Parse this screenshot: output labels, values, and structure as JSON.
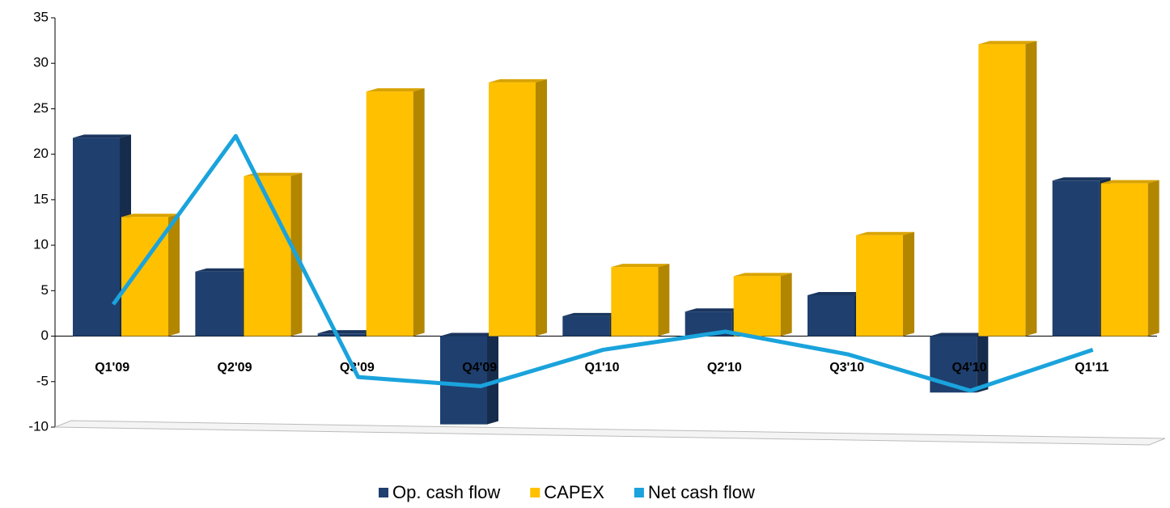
{
  "chart_data": {
    "type": "bar-line",
    "categories": [
      "Q1'09",
      "Q2'09",
      "Q3'09",
      "Q4'09",
      "Q1'10",
      "Q2'10",
      "Q3'10",
      "Q4'10",
      "Q1'11"
    ],
    "series": [
      {
        "name": "Op. cash flow",
        "color": "#1f3f6e",
        "type": "bar",
        "values": [
          21.8,
          7.1,
          0.3,
          -9.7,
          2.2,
          2.7,
          4.5,
          -6.2,
          17.1
        ]
      },
      {
        "name": "CAPEX",
        "color": "#ffc000",
        "type": "bar",
        "values": [
          13.1,
          17.6,
          26.9,
          27.9,
          7.6,
          6.6,
          11.1,
          32.1,
          16.8
        ]
      },
      {
        "name": "Net cash flow",
        "color": "#1aa3dc",
        "type": "line",
        "values": [
          3.5,
          22,
          -4.5,
          -5.5,
          -1.5,
          0.5,
          -2,
          -6,
          -1.5
        ]
      }
    ],
    "ylim": [
      -10,
      35
    ],
    "yticks": [
      -10,
      -5,
      0,
      5,
      10,
      15,
      20,
      25,
      30,
      35
    ]
  }
}
